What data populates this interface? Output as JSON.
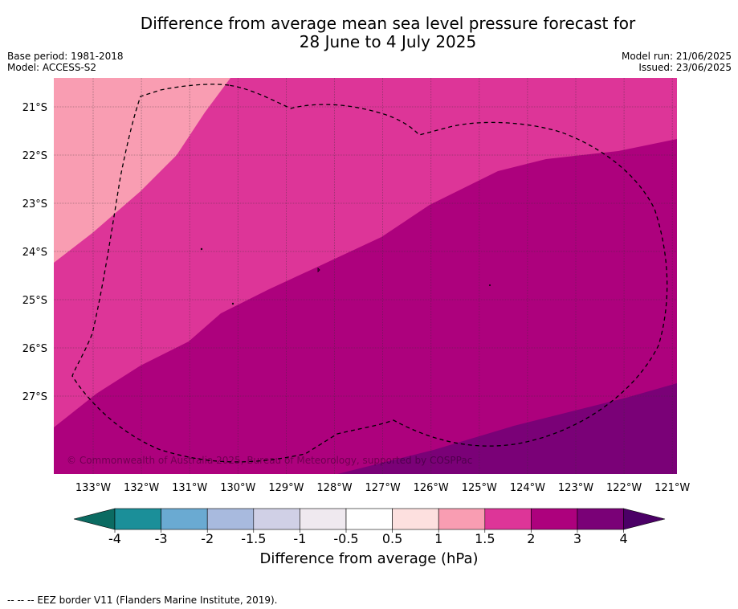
{
  "title_line1": "Difference from average mean sea level pressure forecast for",
  "title_line2": "28 June to 4 July 2025",
  "base_period": "Base period: 1981-2018",
  "model": "Model: ACCESS-S2",
  "model_run": "Model run: 21/06/2025",
  "issued": "Issued: 23/06/2025",
  "copyright": "© Commonwealth of Australia 2025, Bureau of Meteorology, supported by COSPPac",
  "lat_labels": [
    "21°S",
    "22°S",
    "23°S",
    "24°S",
    "25°S",
    "26°S",
    "27°S"
  ],
  "lon_labels": [
    "133°W",
    "132°W",
    "131°W",
    "130°W",
    "129°W",
    "128°W",
    "127°W",
    "126°W",
    "125°W",
    "124°W",
    "123°W",
    "122°W",
    "121°W"
  ],
  "colorbar": {
    "title": "Difference from average (hPa)",
    "tick_labels": [
      "-4",
      "-3",
      "-2",
      "-1.5",
      "-1",
      "-0.5",
      "0.5",
      "1",
      "1.5",
      "2",
      "3",
      "4"
    ],
    "colors": [
      "#1b8f99",
      "#6aaad2",
      "#a8bade",
      "#d0d0e6",
      "#efe9ef",
      "#ffffff",
      "#fde0df",
      "#f99db2",
      "#dd3598",
      "#ad017d",
      "#7a0177"
    ],
    "under_color": "#0b6b62",
    "over_color": "#4b0066"
  },
  "legend": {
    "eez_border": "--  --  -- EEZ border V11 (Flanders Marine Institute, 2019)."
  }
}
